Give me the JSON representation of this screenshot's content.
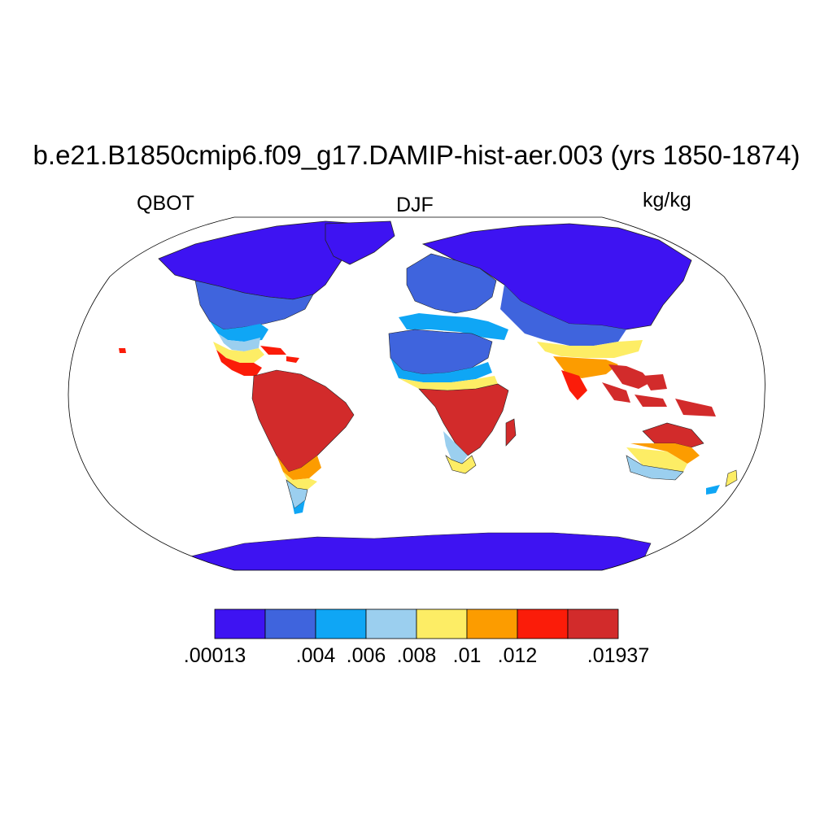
{
  "title": "b.e21.B1850cmip6.f09_g17.DAMIP-hist-aer.003 (yrs 1850-1874)",
  "left_label": "QBOT",
  "center_label": "DJF",
  "right_label": "kg/kg",
  "legend": {
    "colors": [
      "#3e13f2",
      "#3f64dd",
      "#0fa6f5",
      "#9bcfef",
      "#fded65",
      "#fc9c00",
      "#fb1c09",
      "#d22b2b"
    ],
    "labels": [
      ".00013",
      ".004",
      ".006",
      ".008",
      ".01",
      ".012",
      ".01937"
    ],
    "label_boundaries": [
      0,
      2,
      3,
      4,
      5,
      6,
      8
    ]
  }
}
